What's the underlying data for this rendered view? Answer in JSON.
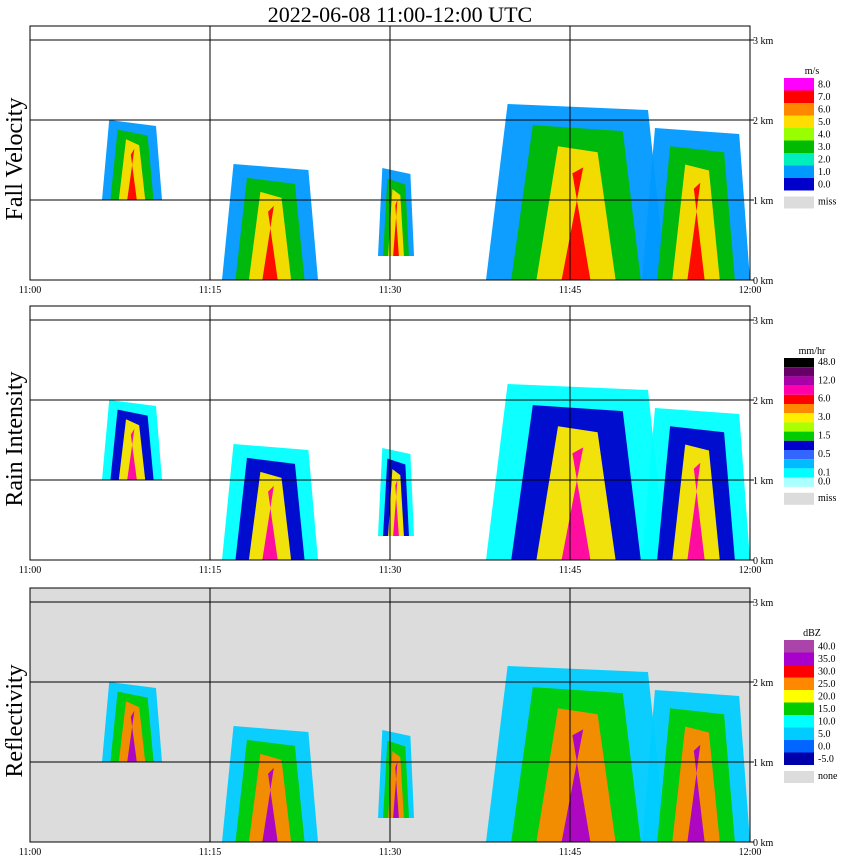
{
  "title": "2022-06-08  11:00-12:00 UTC",
  "time_ticks": [
    "11:00",
    "11:15",
    "11:30",
    "11:45",
    "12:00"
  ],
  "height_ticks": [
    "0 km",
    "1 km",
    "2 km",
    "3 km"
  ],
  "panels": [
    {
      "label": "Fall Velocity",
      "legend_unit": "m/s",
      "legend": [
        {
          "label": "8.0",
          "color": "#ff00ff"
        },
        {
          "label": "7.0",
          "color": "#ff0000"
        },
        {
          "label": "6.0",
          "color": "#ff8800"
        },
        {
          "label": "5.0",
          "color": "#ffdd00"
        },
        {
          "label": "4.0",
          "color": "#99ff00"
        },
        {
          "label": "3.0",
          "color": "#00bb00"
        },
        {
          "label": "2.0",
          "color": "#00eebb"
        },
        {
          "label": "1.0",
          "color": "#0099ff"
        },
        {
          "label": "0.0",
          "color": "#0000cc"
        }
      ],
      "miss_label": "miss"
    },
    {
      "label": "Rain Intensity",
      "legend_unit": "mm/hr",
      "legend": [
        {
          "label": "48.0",
          "color": "#000000"
        },
        {
          "label": "",
          "color": "#660066"
        },
        {
          "label": "12.0",
          "color": "#aa00aa"
        },
        {
          "label": "",
          "color": "#ff00aa"
        },
        {
          "label": "6.0",
          "color": "#ff0000"
        },
        {
          "label": "",
          "color": "#ff8800"
        },
        {
          "label": "3.0",
          "color": "#ffee00"
        },
        {
          "label": "",
          "color": "#aaff00"
        },
        {
          "label": "1.5",
          "color": "#00cc00"
        },
        {
          "label": "",
          "color": "#0000cc"
        },
        {
          "label": "0.5",
          "color": "#3366ff"
        },
        {
          "label": "",
          "color": "#00bbff"
        },
        {
          "label": "0.1",
          "color": "#00ffff"
        },
        {
          "label": "0.0",
          "color": "#aaffff"
        }
      ],
      "miss_label": "miss"
    },
    {
      "label": "Reflectivity",
      "legend_unit": "dBZ",
      "legend": [
        {
          "label": "40.0",
          "color": "#aa44aa"
        },
        {
          "label": "35.0",
          "color": "#aa00cc"
        },
        {
          "label": "30.0",
          "color": "#ff0000"
        },
        {
          "label": "25.0",
          "color": "#ff8800"
        },
        {
          "label": "20.0",
          "color": "#ffff00"
        },
        {
          "label": "15.0",
          "color": "#00cc00"
        },
        {
          "label": "10.0",
          "color": "#00ffff"
        },
        {
          "label": "5.0",
          "color": "#00ccff"
        },
        {
          "label": "0.0",
          "color": "#0066ff"
        },
        {
          "label": "-5.0",
          "color": "#0000aa"
        }
      ],
      "miss_label": "none"
    }
  ],
  "chart_data": {
    "type": "heatmap",
    "title": "2022-06-08  11:00-12:00 UTC",
    "x_axis": {
      "unit": "UTC time",
      "ticks": [
        "11:00",
        "11:15",
        "11:30",
        "11:45",
        "12:00"
      ],
      "range": [
        "11:00",
        "12:00"
      ]
    },
    "y_axis": {
      "unit": "km",
      "ticks": [
        "0 km",
        "1 km",
        "2 km",
        "3 km"
      ],
      "range_km": [
        0,
        3.2
      ]
    },
    "grid": true,
    "panels": [
      "Fall Velocity",
      "Rain Intensity",
      "Reflectivity"
    ],
    "echo_cells": [
      {
        "start": "11:06",
        "end": "11:11",
        "base_km": 1.0,
        "top_km": 2.0
      },
      {
        "start": "11:16",
        "end": "11:24",
        "base_km": 0.0,
        "top_km": 1.45
      },
      {
        "start": "11:29",
        "end": "11:32",
        "base_km": 0.3,
        "top_km": 1.4
      },
      {
        "start": "11:38",
        "end": "11:53",
        "base_km": 0.0,
        "top_km": 2.2
      },
      {
        "start": "11:51",
        "end": "12:00",
        "base_km": 0.0,
        "top_km": 1.9
      }
    ]
  }
}
